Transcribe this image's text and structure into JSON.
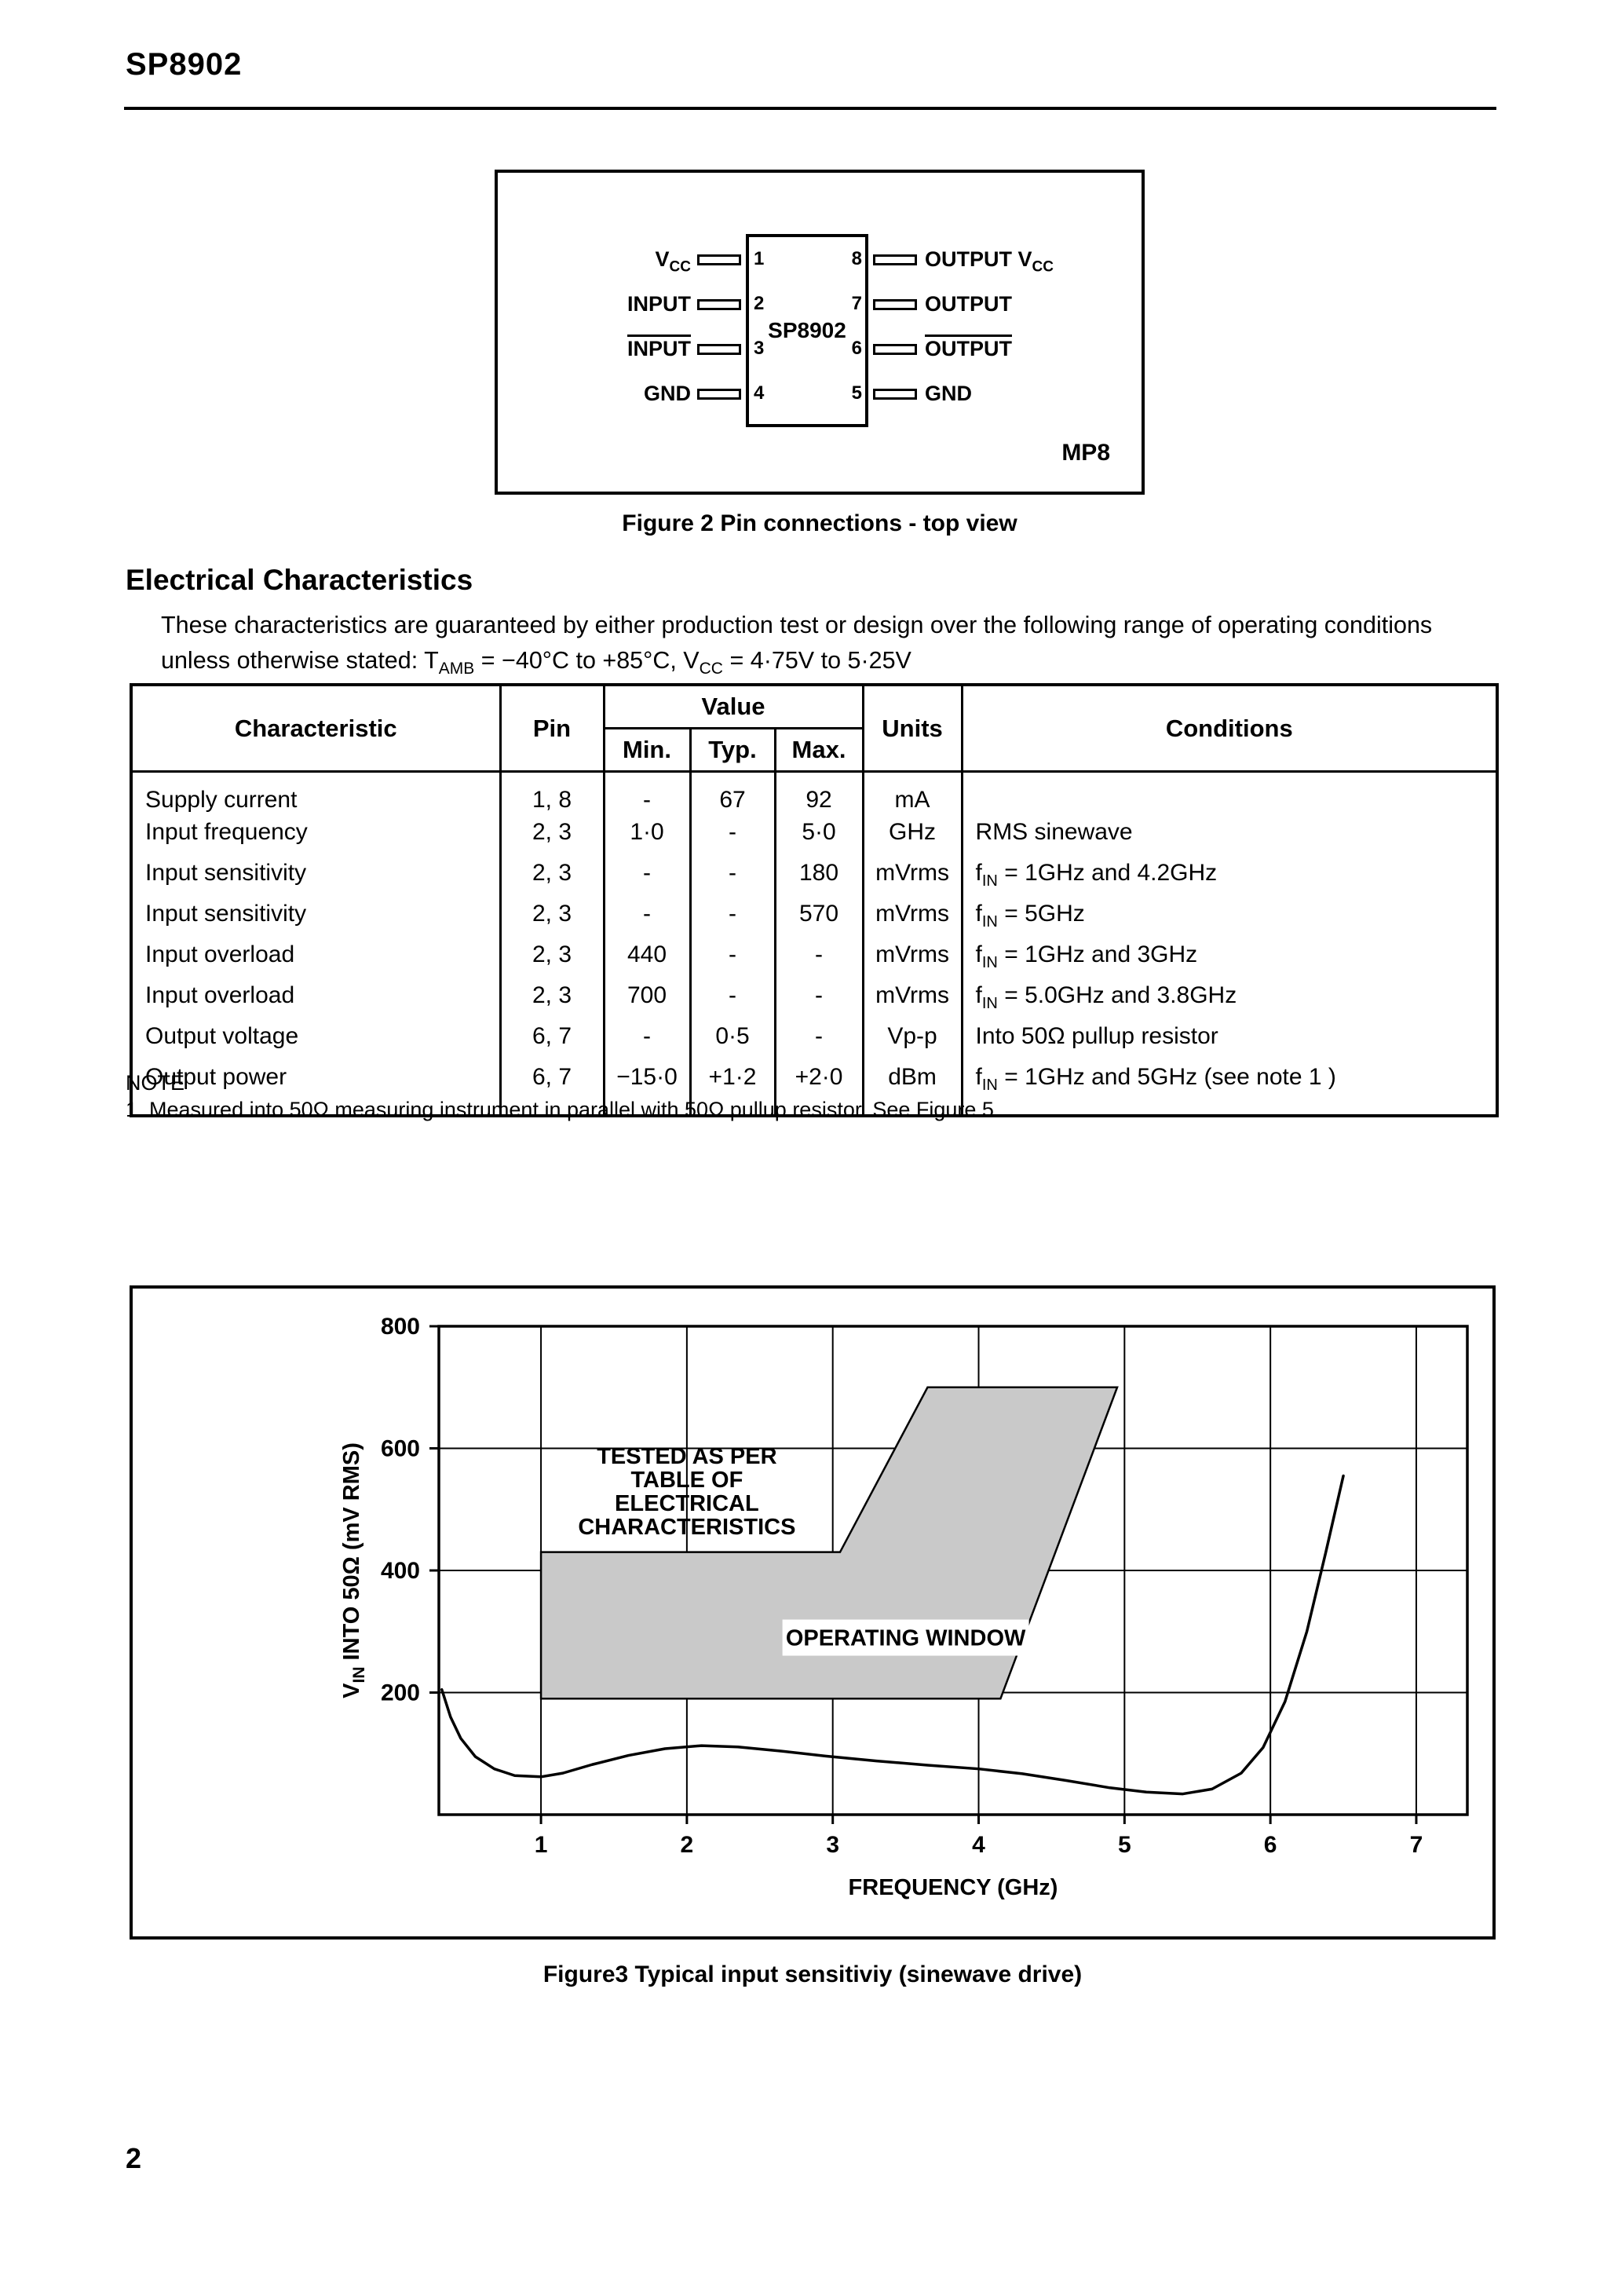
{
  "page": {
    "title": "SP8902",
    "page_number": "2"
  },
  "figure2": {
    "chip_label": "SP8902",
    "package_label": "MP8",
    "caption": "Figure 2 Pin connections - top view",
    "left_pins": [
      {
        "num": "1",
        "text": "V",
        "sub": "CC",
        "overline": false
      },
      {
        "num": "2",
        "text": "INPUT",
        "sub": "",
        "overline": false
      },
      {
        "num": "3",
        "text": "INPUT",
        "sub": "",
        "overline": true
      },
      {
        "num": "4",
        "text": "GND",
        "sub": "",
        "overline": false
      }
    ],
    "right_pins": [
      {
        "num": "8",
        "text": "OUTPUT V",
        "sub": "CC",
        "overline": false
      },
      {
        "num": "7",
        "text": "OUTPUT",
        "sub": "",
        "overline": false
      },
      {
        "num": "6",
        "text": "OUTPUT",
        "sub": "",
        "overline": true
      },
      {
        "num": "5",
        "text": "GND",
        "sub": "",
        "overline": false
      }
    ]
  },
  "section": {
    "heading": "Electrical Characteristics",
    "intro_line1": "These characteristics are guaranteed by either production test or design over the following range of operating conditions",
    "intro_line2": {
      "a": "unless otherwise stated: T",
      "sub1": "AMB",
      "b": " = −40°C to +85°C, V",
      "sub2": "CC",
      "c": " = 4·75V to 5·25V"
    }
  },
  "table": {
    "headers": {
      "characteristic": "Characteristic",
      "pin": "Pin",
      "value": "Value",
      "min": "Min.",
      "typ": "Typ.",
      "max": "Max.",
      "units": "Units",
      "conditions": "Conditions"
    },
    "rows": [
      {
        "characteristic": "Supply current",
        "pin": "1, 8",
        "min": "-",
        "typ": "67",
        "max": "92",
        "units": "mA",
        "cond_pre": "",
        "cond_sub": "",
        "cond_rest": ""
      },
      {
        "characteristic": "Input frequency",
        "pin": "2, 3",
        "min": "1·0",
        "typ": "-",
        "max": "5·0",
        "units": "GHz",
        "cond_pre": "",
        "cond_sub": "",
        "cond_rest": "RMS sinewave"
      },
      {
        "characteristic": "Input sensitivity",
        "pin": "2, 3",
        "min": "-",
        "typ": "-",
        "max": "180",
        "units": "mVrms",
        "cond_pre": "f",
        "cond_sub": "IN",
        "cond_rest": " = 1GHz and 4.2GHz"
      },
      {
        "characteristic": "Input sensitivity",
        "pin": "2, 3",
        "min": "-",
        "typ": "-",
        "max": "570",
        "units": "mVrms",
        "cond_pre": "f",
        "cond_sub": "IN",
        "cond_rest": " = 5GHz"
      },
      {
        "characteristic": "Input overload",
        "pin": "2, 3",
        "min": "440",
        "typ": "-",
        "max": "-",
        "units": "mVrms",
        "cond_pre": "f",
        "cond_sub": "IN",
        "cond_rest": " = 1GHz and 3GHz"
      },
      {
        "characteristic": "Input overload",
        "pin": "2, 3",
        "min": "700",
        "typ": "-",
        "max": "-",
        "units": "mVrms",
        "cond_pre": "f",
        "cond_sub": "IN",
        "cond_rest": " = 5.0GHz and 3.8GHz"
      },
      {
        "characteristic": "Output voltage",
        "pin": "6, 7",
        "min": "-",
        "typ": "0·5",
        "max": "-",
        "units": "Vp-p",
        "cond_pre": "",
        "cond_sub": "",
        "cond_rest": "Into 50Ω pullup resistor"
      },
      {
        "characteristic": "Output power",
        "pin": "6, 7",
        "min": "−15·0",
        "typ": "+1·2",
        "max": "+2·0",
        "units": "dBm",
        "cond_pre": "f",
        "cond_sub": "IN",
        "cond_rest": " = 1GHz and 5GHz (see note 1 )"
      }
    ]
  },
  "note": {
    "heading": "NOTE",
    "item1": "1.  Measured into 50Ω measuring instrument in parallel with 50Ω pullup resistor. See Figure 5."
  },
  "figure3": {
    "caption": "Figure3 Typical input sensitiviy (sinewave drive)"
  },
  "chart_data": {
    "type": "line",
    "title": "",
    "xlabel": "FREQUENCY (GHz)",
    "ylabel_parts": {
      "pre": "V",
      "sub": "IN",
      "rest": " INTO 50Ω (mV RMS)"
    },
    "xlim": [
      0.3,
      7.35
    ],
    "ylim": [
      0,
      800
    ],
    "xticks": [
      1,
      2,
      3,
      4,
      5,
      6,
      7
    ],
    "yticks": [
      200,
      400,
      600,
      800
    ],
    "grid": true,
    "tested_note": {
      "lines": [
        "TESTED AS PER",
        "TABLE OF",
        "ELECTRICAL",
        "CHARACTERISTICS"
      ],
      "x": 2.0,
      "y": 575
    },
    "window_label": {
      "text": "OPERATING WINDOW",
      "x": 3.5,
      "y": 290
    },
    "window_fill": "#c9c9c9",
    "operating_window_polygon": [
      [
        1.0,
        190
      ],
      [
        1.0,
        430
      ],
      [
        3.05,
        430
      ],
      [
        3.65,
        700
      ],
      [
        4.95,
        700
      ],
      [
        4.15,
        190
      ]
    ],
    "sensitivity_curve": [
      [
        0.32,
        205
      ],
      [
        0.38,
        160
      ],
      [
        0.45,
        125
      ],
      [
        0.55,
        95
      ],
      [
        0.68,
        75
      ],
      [
        0.82,
        64
      ],
      [
        1.0,
        62
      ],
      [
        1.15,
        68
      ],
      [
        1.35,
        82
      ],
      [
        1.6,
        97
      ],
      [
        1.85,
        108
      ],
      [
        2.1,
        113
      ],
      [
        2.35,
        111
      ],
      [
        2.65,
        104
      ],
      [
        2.95,
        96
      ],
      [
        3.3,
        88
      ],
      [
        3.65,
        81
      ],
      [
        4.0,
        75
      ],
      [
        4.3,
        67
      ],
      [
        4.6,
        56
      ],
      [
        4.9,
        44
      ],
      [
        5.15,
        37
      ],
      [
        5.4,
        34
      ],
      [
        5.6,
        42
      ],
      [
        5.8,
        68
      ],
      [
        5.95,
        110
      ],
      [
        6.1,
        185
      ],
      [
        6.25,
        300
      ],
      [
        6.38,
        430
      ],
      [
        6.5,
        555
      ]
    ]
  }
}
